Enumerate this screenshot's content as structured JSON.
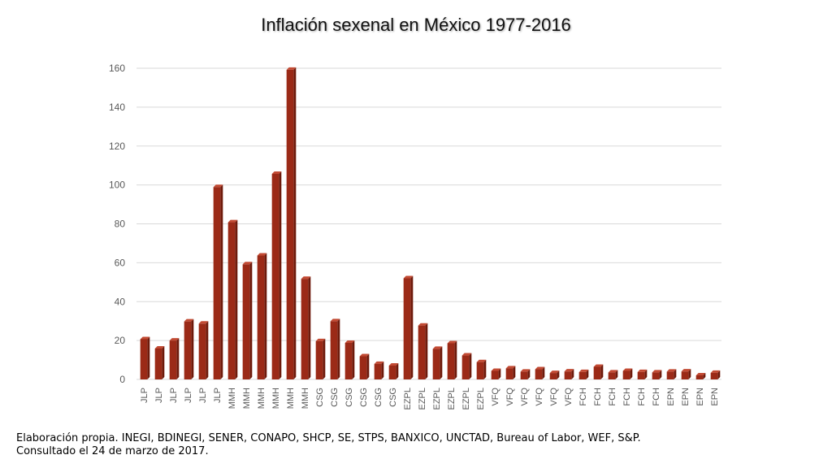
{
  "colors": {
    "bar_front": "#9b2a17",
    "bar_side": "#6e1a0b",
    "bar_top": "#c24a33",
    "grid": "#d9d9d9",
    "tick_text": "#595959"
  },
  "chart_data": {
    "type": "bar",
    "title": "Inflación sexenal en México 1977-2016",
    "xlabel": "",
    "ylabel": "",
    "ylim": [
      0,
      160
    ],
    "yticks": [
      0,
      20,
      40,
      60,
      80,
      100,
      120,
      140,
      160
    ],
    "grid": true,
    "legend": "none",
    "categories": [
      "JLP",
      "JLP",
      "JLP",
      "JLP",
      "JLP",
      "JLP",
      "MMH",
      "MMH",
      "MMH",
      "MMH",
      "MMH",
      "MMH",
      "CSG",
      "CSG",
      "CSG",
      "CSG",
      "CSG",
      "CSG",
      "EZPL",
      "EZPL",
      "EZPL",
      "EZPL",
      "EZPL",
      "EZPL",
      "VFQ",
      "VFQ",
      "VFQ",
      "VFQ",
      "VFQ",
      "VFQ",
      "FCH",
      "FCH",
      "FCH",
      "FCH",
      "FCH",
      "FCH",
      "EPN",
      "EPN",
      "EPN",
      "EPN"
    ],
    "values": [
      20.7,
      15.9,
      20.0,
      29.8,
      28.7,
      98.9,
      80.8,
      59.2,
      63.7,
      105.7,
      159.2,
      51.7,
      19.7,
      29.9,
      18.8,
      11.9,
      8.0,
      7.1,
      52.0,
      27.7,
      15.7,
      18.6,
      12.3,
      8.9,
      4.4,
      5.7,
      4.0,
      5.2,
      3.3,
      4.1,
      3.8,
      6.5,
      3.6,
      4.4,
      3.8,
      3.6,
      4.0,
      4.1,
      2.1,
      3.4
    ]
  },
  "source": {
    "line1": "Elaboración propia. INEGI, BDINEGI, SENER, CONAPO, SHCP, SE, STPS, BANXICO, UNCTAD, Bureau of Labor, WEF, S&P.",
    "line2": "Consultado el 24 de marzo de 2017."
  }
}
